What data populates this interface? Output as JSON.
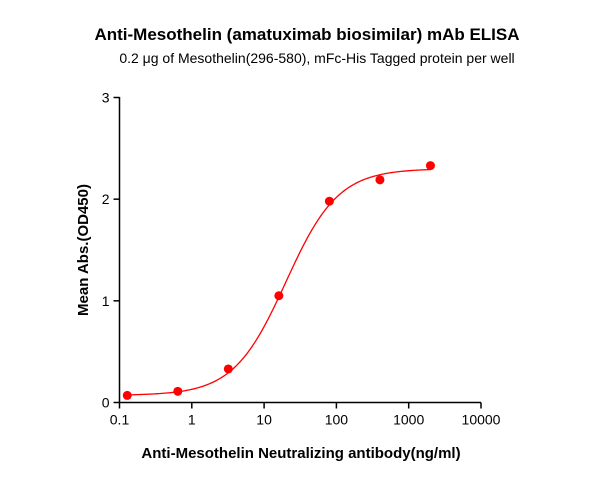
{
  "chart_data": {
    "type": "scatter",
    "title": "Anti-Mesothelin (amatuximab biosimilar) mAb ELISA",
    "subtitle": "0.2 μg of Mesothelin(296-580), mFc-His Tagged protein per well",
    "xlabel": "Anti-Mesothelin Neutralizing antibody(ng/ml)",
    "ylabel": "Mean Abs.(OD450)",
    "xscale": "log",
    "xlim": [
      0.1,
      10000
    ],
    "ylim": [
      0,
      3
    ],
    "xticks": [
      "0.1",
      "1",
      "10",
      "100",
      "1000",
      "10000"
    ],
    "xtick_values": [
      0.1,
      1,
      10,
      100,
      1000,
      10000
    ],
    "yticks": [
      "0",
      "1",
      "2",
      "3"
    ],
    "ytick_values": [
      0,
      1,
      2,
      3
    ],
    "grid": false,
    "color": "#ff0000",
    "points": {
      "x": [
        0.128,
        0.64,
        3.2,
        16,
        80,
        400,
        2000
      ],
      "y": [
        0.07,
        0.11,
        0.33,
        1.05,
        1.98,
        2.19,
        2.33
      ]
    },
    "fit": {
      "model": "4PL",
      "bottom": 0.07,
      "top": 2.3,
      "ec50": 20,
      "hill": 1.2
    }
  }
}
